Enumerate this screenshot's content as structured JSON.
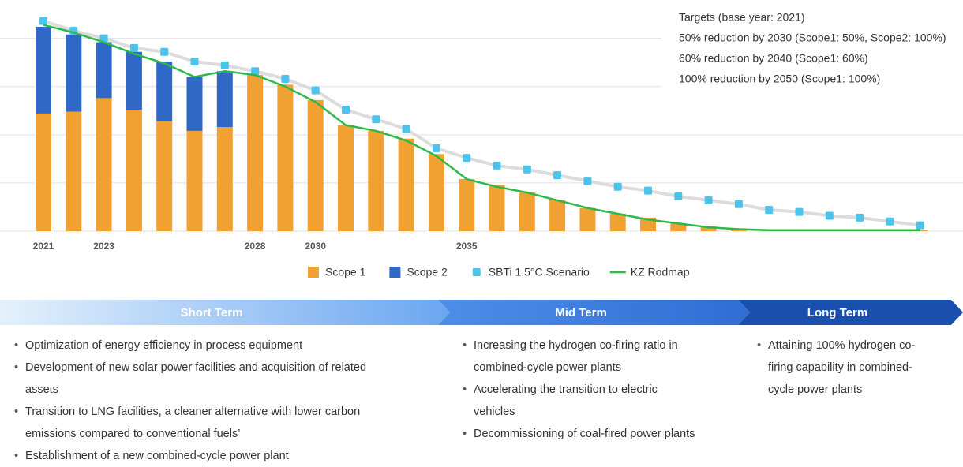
{
  "chart_data": {
    "type": "bar",
    "categories": [
      "2021",
      null,
      "2023",
      null,
      null,
      null,
      null,
      "2028",
      null,
      "2030",
      null,
      null,
      null,
      null,
      "2035",
      null,
      null,
      null,
      null,
      null,
      null,
      null,
      null,
      null,
      null,
      null,
      null,
      null,
      null,
      null
    ],
    "series": [
      {
        "name": "Scope 1",
        "color": "#f0a132",
        "type": "bar",
        "values": [
          61,
          62,
          69,
          63,
          57,
          52,
          54,
          81,
          76,
          68,
          55,
          52,
          48,
          40,
          27,
          24,
          20,
          16,
          12,
          9,
          7,
          4,
          2.5,
          1,
          0.5,
          0.5,
          0.5,
          0.5,
          0.5,
          0.5
        ]
      },
      {
        "name": "Scope 2",
        "color": "#3068c8",
        "type": "bar",
        "values": [
          45,
          40,
          29,
          30,
          31,
          28,
          29,
          0,
          0,
          0,
          0,
          0,
          0,
          0,
          0,
          0,
          0,
          0,
          0,
          0,
          0,
          0,
          0,
          0,
          0,
          0,
          0,
          0,
          0,
          0
        ]
      },
      {
        "name": "SBTi 1.5°C Scenario",
        "color": "#4cc3ea",
        "type": "line",
        "values": [
          109,
          104,
          100,
          95,
          93,
          88,
          86,
          83,
          79,
          73,
          63,
          58,
          53,
          43,
          38,
          34,
          32,
          29,
          26,
          23,
          21,
          18,
          16,
          14,
          11,
          10,
          8,
          7,
          5,
          3
        ]
      },
      {
        "name": "KZ Rodmap",
        "color": "#2db84a",
        "type": "line",
        "values": [
          107,
          103,
          98,
          92,
          87,
          80,
          83,
          81,
          75,
          67,
          55,
          52,
          47,
          39,
          27,
          23,
          20,
          16,
          12,
          9,
          6,
          4,
          2,
          1,
          0.5,
          0.5,
          0.5,
          0.5,
          0.5,
          0.5
        ]
      }
    ],
    "ylim": [
      0,
      115
    ],
    "yticks": [
      0,
      25,
      50,
      75,
      100
    ],
    "grid": true,
    "legend": "bottom"
  },
  "targets": {
    "title": "Targets (base year: 2021)",
    "items": [
      "50% reduction by 2030 (Scope1: 50%, Scope2: 100%)",
      "60% reduction by 2040 (Scope1: 60%)",
      "100% reduction by 2050 (Scope1: 100%)"
    ]
  },
  "phases": [
    {
      "name": "Short Term",
      "items": [
        "Optimization of energy efficiency in process equipment",
        "Development of new solar power facilities and acquisition of related assets",
        "Transition to LNG facilities, a cleaner alternative with lower carbon emissions compared to conventional fuels’",
        "Establishment of a new combined-cycle power plant"
      ]
    },
    {
      "name": "Mid Term",
      "items": [
        "Increasing the hydrogen co-firing ratio in combined-cycle power plants",
        "Accelerating the transition to electric vehicles",
        "Decommissioning of coal-fired power plants"
      ]
    },
    {
      "name": "Long Term",
      "items": [
        "Attaining 100% hydrogen co-firing capability in combined-cycle power plants"
      ]
    }
  ]
}
